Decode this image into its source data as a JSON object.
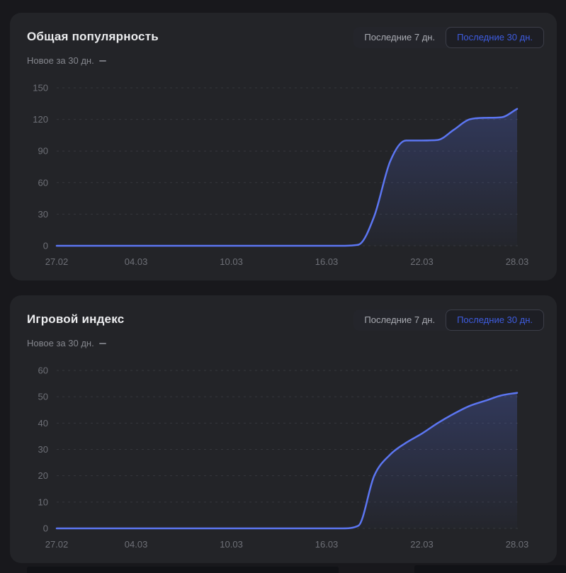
{
  "colors": {
    "page_bg": "#18181c",
    "card_bg": "#232428",
    "title_text": "#ecedef",
    "subtitle_text": "#85878e",
    "axis_label": "#6e7077",
    "gridline": "#36373d",
    "line": "#5c76f2",
    "area_fill_top": "rgba(92,118,242,0.25)",
    "area_fill_bottom": "rgba(92,118,242,0.02)",
    "toggle_bg": "#24252b",
    "toggle_active_bg": "#1d1e24",
    "toggle_active_border": "#3c3e48",
    "toggle_active_text": "#3e5ce0",
    "toggle_inactive_text": "#a9abb2"
  },
  "cards": [
    {
      "title": "Общая популярность",
      "legend_label": "Новое за 30 дн.",
      "toggle": {
        "last7_label": "Последние 7 дн.",
        "last30_label": "Последние 30 дн.",
        "active_option": "Последние 30 дн."
      }
    },
    {
      "title": "Игровой индекс",
      "legend_label": "Новое за 30 дн.",
      "toggle": {
        "last7_label": "Последние 7 дн.",
        "last30_label": "Последние 30 дн.",
        "active_option": "Последние 30 дн."
      }
    }
  ],
  "chart_data": [
    {
      "type": "area",
      "title": "Общая популярность",
      "series_label": "Новое за 30 дн.",
      "x_tick_labels": [
        "27.02",
        "04.03",
        "10.03",
        "16.03",
        "22.03",
        "28.03"
      ],
      "x_tick_days": [
        0,
        5,
        11,
        17,
        23,
        29
      ],
      "x_days": 30,
      "y_ticks": [
        0,
        30,
        60,
        90,
        120,
        150
      ],
      "ylim": [
        0,
        150
      ],
      "grid": "dashed-horizontal",
      "legend_position": "top-left",
      "values": [
        0,
        0,
        0,
        0,
        0,
        0,
        0,
        0,
        0,
        0,
        0,
        0,
        0,
        0,
        0,
        0,
        0,
        0,
        0,
        1,
        28,
        80,
        100,
        100,
        100.5,
        110,
        120,
        121.5,
        122,
        130
      ]
    },
    {
      "type": "area",
      "title": "Игровой индекс",
      "series_label": "Новое за 30 дн.",
      "x_tick_labels": [
        "27.02",
        "04.03",
        "10.03",
        "16.03",
        "22.03",
        "28.03"
      ],
      "x_tick_days": [
        0,
        5,
        11,
        17,
        23,
        29
      ],
      "x_days": 30,
      "y_ticks": [
        0,
        10,
        20,
        30,
        40,
        50,
        60
      ],
      "ylim": [
        0,
        60
      ],
      "grid": "dashed-horizontal",
      "legend_position": "top-left",
      "values": [
        0,
        0,
        0,
        0,
        0,
        0,
        0,
        0,
        0,
        0,
        0,
        0,
        0,
        0,
        0,
        0,
        0,
        0,
        0,
        1,
        20,
        28,
        32.5,
        36,
        40,
        43.5,
        46.5,
        48.5,
        50.5,
        51.5
      ]
    }
  ]
}
